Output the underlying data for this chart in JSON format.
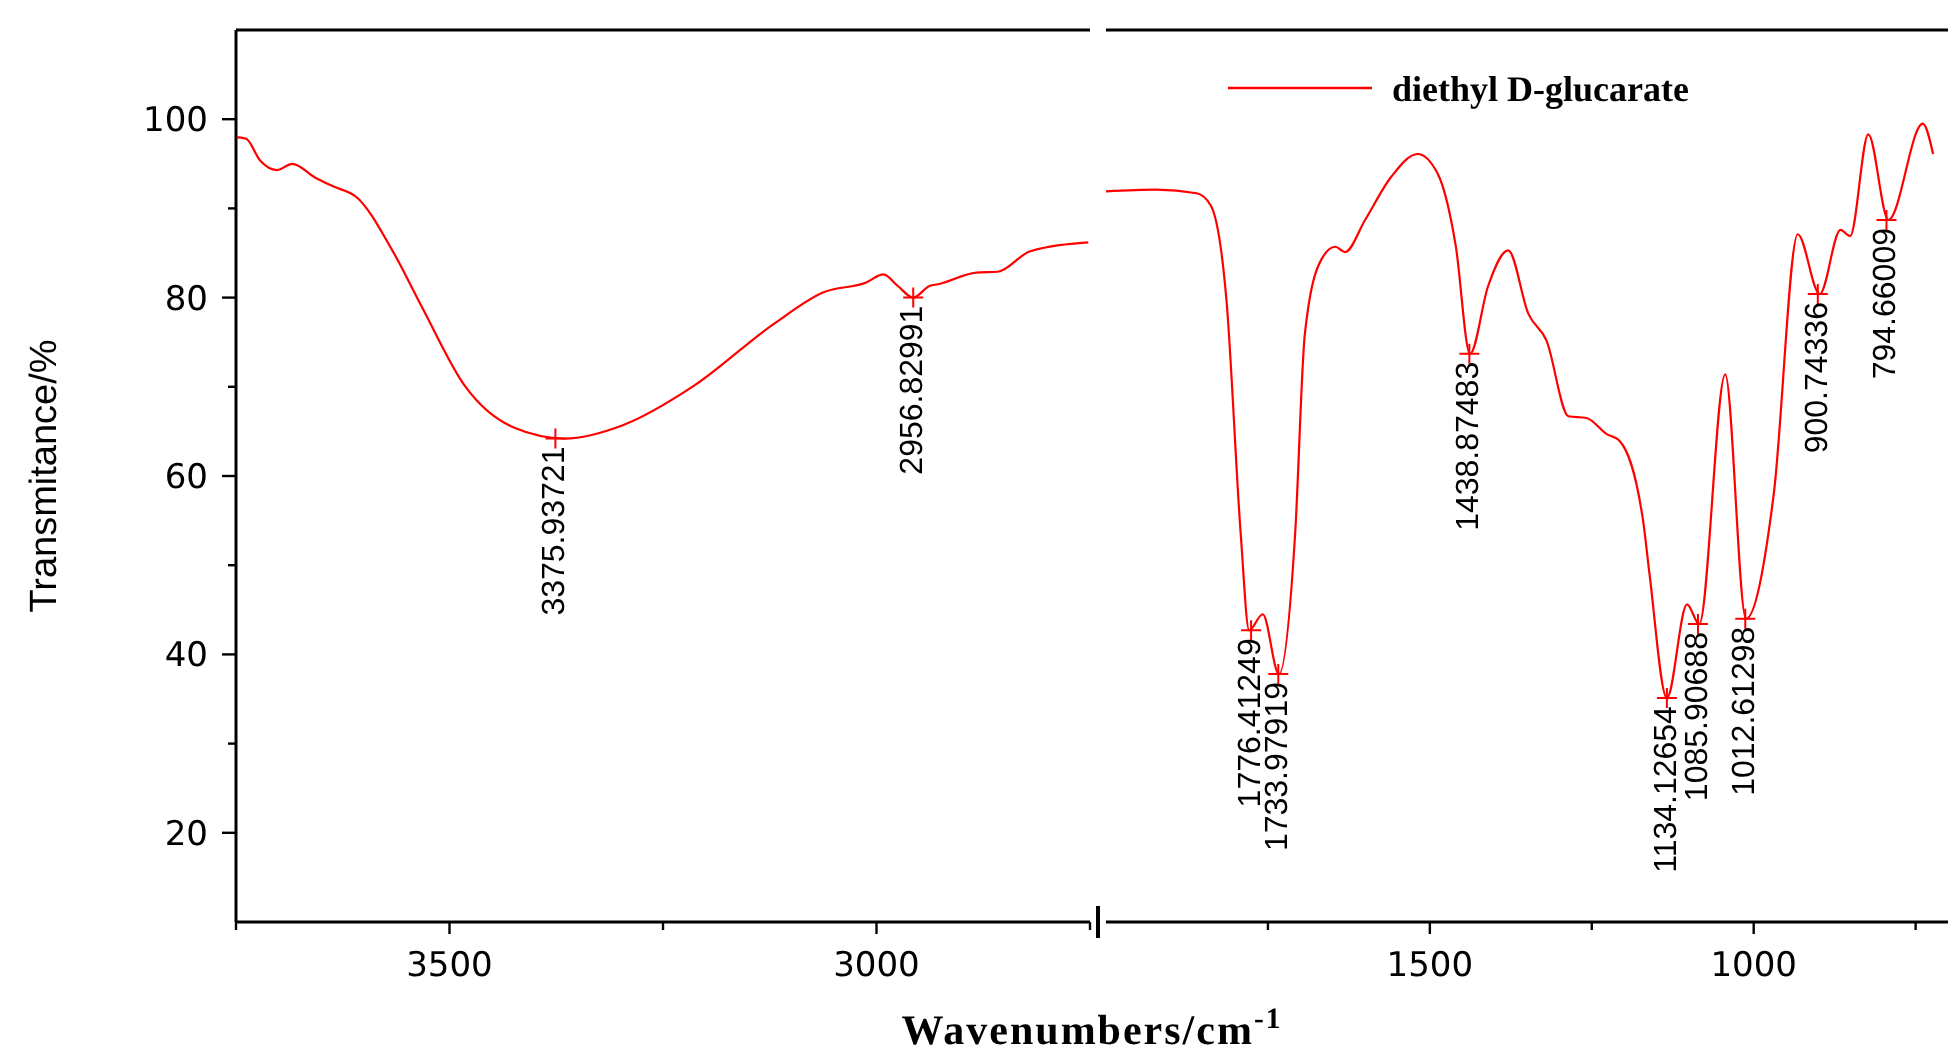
{
  "chart_data": [
    {
      "type": "line",
      "ylabel": "Transmitance/%",
      "xlabel": "Wavenumbers/cm$^{-1}$",
      "xlim": [
        3750,
        2750
      ],
      "xticks": [
        {
          "value": 3750,
          "label": null
        },
        3500,
        {
          "value": 3250,
          "label": null
        },
        3000,
        {
          "value": 2750,
          "label": null
        }
      ],
      "ylim": [
        10,
        110
      ],
      "yticks": [
        20,
        {
          "value": 30,
          "label": null
        },
        40,
        {
          "value": 50,
          "label": null
        },
        60,
        {
          "value": 70,
          "label": null
        },
        80,
        {
          "value": 90,
          "label": null
        },
        100
      ],
      "grid": false,
      "legend": false,
      "marker": "none",
      "line_style": "solid",
      "series": [
        {
          "color": "#ff0000",
          "x": [
            3749,
            3738,
            3722,
            3702,
            3684,
            3658,
            3637,
            3608,
            3567,
            3532,
            3482,
            3424,
            3365,
            3297,
            3214,
            3121,
            3062,
            3012,
            2992,
            2975,
            2957,
            2938,
            2928,
            2883,
            2858,
            2820,
            2752
          ],
          "values": [
            98.0,
            97.8,
            95.4,
            94.3,
            95.0,
            93.5,
            92.5,
            91.2,
            85.3,
            78.9,
            70.1,
            65.4,
            64.2,
            65.7,
            70.1,
            77.0,
            80.6,
            81.7,
            82.6,
            81.3,
            80.0,
            81.3,
            81.5,
            82.8,
            82.9,
            85.2,
            86.2
          ]
        }
      ],
      "annotations": [
        {
          "text": "3375.93721",
          "x": 3376,
          "y": 64.2
        },
        {
          "text": "2956.82991",
          "x": 2957,
          "y": 80.0
        }
      ]
    },
    {
      "type": "line",
      "xlim": [
        2000,
        700
      ],
      "xticks": [
        {
          "value": 1750,
          "label": null
        },
        1500,
        {
          "value": 1250,
          "label": null
        },
        1000,
        {
          "value": 750,
          "label": null
        }
      ],
      "ylim": [
        10,
        110
      ],
      "tick_labels": "x",
      "grid": false,
      "legend": "top",
      "marker": "none",
      "line_style": "solid",
      "series": [
        {
          "name": "diethyl D-glucarate",
          "color": "#ff0000",
          "x": [
            2000,
            1922,
            1860,
            1838,
            1814,
            1792,
            1779,
            1758,
            1733,
            1708,
            1693,
            1668,
            1646,
            1631,
            1600,
            1559,
            1519,
            1488,
            1460,
            1438,
            1410,
            1379,
            1348,
            1320,
            1286,
            1258,
            1227,
            1208,
            1171,
            1161,
            1134,
            1103,
            1084,
            1044,
            1012,
            969,
            932,
            898,
            866,
            851,
            823,
            792,
            739,
            723
          ],
          "values": [
            91.9,
            92.1,
            91.7,
            90.3,
            79.7,
            53.5,
            42.7,
            44.5,
            37.8,
            53.5,
            75.9,
            84.2,
            85.7,
            85.1,
            88.7,
            93.6,
            96.1,
            93.9,
            85.8,
            73.7,
            81.3,
            85.3,
            78.2,
            75.2,
            66.7,
            66.5,
            64.7,
            64.0,
            55.1,
            49.1,
            35.1,
            45.6,
            43.4,
            71.4,
            44.0,
            58.0,
            87.1,
            80.4,
            87.6,
            86.9,
            98.3,
            88.7,
            99.5,
            96.1
          ]
        }
      ],
      "annotations": [
        {
          "text": "1776.41249",
          "x": 1776,
          "y": 42.7
        },
        {
          "text": "1733.97919",
          "x": 1734,
          "y": 37.8
        },
        {
          "text": "1438.87483",
          "x": 1439,
          "y": 73.7
        },
        {
          "text": "1134.12654",
          "x": 1134,
          "y": 35.1
        },
        {
          "text": "1085.90688",
          "x": 1086,
          "y": 43.4
        },
        {
          "text": "1012.61298",
          "x": 1013,
          "y": 44.0
        },
        {
          "text": "900.74336",
          "x": 901,
          "y": 80.4
        },
        {
          "text": "794.66009",
          "x": 795,
          "y": 88.7
        }
      ]
    }
  ]
}
